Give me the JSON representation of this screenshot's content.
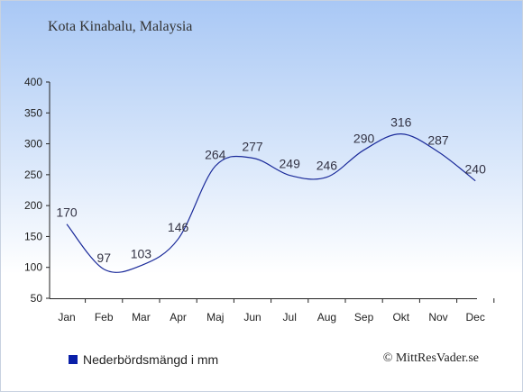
{
  "header": {
    "title": "Kota Kinabalu, Malaysia"
  },
  "legend": {
    "label": "Nederbördsmängd i mm"
  },
  "footer": {
    "copyright": "© MittResVader.se"
  },
  "colors": {
    "line": "#1a2a9a",
    "legend_swatch": "#0a1fa8",
    "axis": "#222222",
    "label": "#333344"
  },
  "chart_data": {
    "type": "line",
    "title": "Kota Kinabalu, Malaysia",
    "xlabel": "",
    "ylabel": "",
    "categories": [
      "Jan",
      "Feb",
      "Mar",
      "Apr",
      "Maj",
      "Jun",
      "Jul",
      "Aug",
      "Sep",
      "Okt",
      "Nov",
      "Dec"
    ],
    "series": [
      {
        "name": "Nederbördsmängd i mm",
        "values": [
          170,
          97,
          103,
          146,
          264,
          277,
          249,
          246,
          290,
          316,
          287,
          240
        ]
      }
    ],
    "ylim": [
      50,
      400
    ],
    "yticks": [
      50,
      100,
      150,
      200,
      250,
      300,
      350,
      400
    ],
    "grid": false,
    "legend_position": "bottom-left"
  }
}
